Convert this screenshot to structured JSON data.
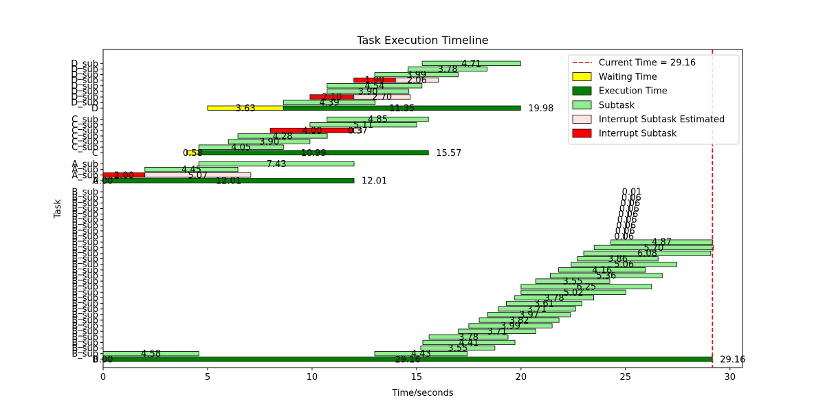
{
  "chart_data": {
    "type": "gantt",
    "title": "Task Execution Timeline",
    "xlabel": "Time/seconds",
    "ylabel": "Task",
    "xlim": [
      0,
      30.6
    ],
    "xticks": [
      0,
      5,
      10,
      15,
      20,
      25,
      30
    ],
    "grid": false,
    "legend_position": "top-right",
    "colors": {
      "current_time": "#ff0000",
      "waiting": "#ffff00",
      "execution": "#008000",
      "subtask": "#90ee90",
      "interrupt_estimated": "#ffe4e1",
      "interrupt": "#ff0000"
    },
    "legend": [
      {
        "label": "Current Time = 29.16",
        "kind": "line",
        "color": "#ff0000"
      },
      {
        "label": "Waiting Time",
        "kind": "rect",
        "color": "#ffff00"
      },
      {
        "label": "Execution Time",
        "kind": "rect",
        "color": "#008000"
      },
      {
        "label": "Subtask",
        "kind": "rect",
        "color": "#90ee90"
      },
      {
        "label": "Interrupt Subtask Estimated",
        "kind": "rect",
        "color": "#ffe4e1"
      },
      {
        "label": "Interrupt Subtask",
        "kind": "rect",
        "color": "#ff0000"
      }
    ],
    "current_time": 29.16,
    "rows": [
      {
        "row": 32.5,
        "label": "B",
        "bars": [
          {
            "start": 0.0,
            "dur": 29.16,
            "kind": "execution",
            "text": "29.16"
          },
          {
            "start": 0.0,
            "dur": 0,
            "kind": "waiting",
            "text": "0.00"
          }
        ],
        "end_label": "29.16"
      },
      {
        "row": 33.5,
        "label": "B_sub",
        "bars": [
          {
            "start": 0.0,
            "dur": 4.58,
            "kind": "subtask",
            "text": "4.58"
          },
          {
            "start": 13.0,
            "dur": 4.43,
            "kind": "subtask",
            "text": "4.43"
          }
        ]
      },
      {
        "row": 34.5,
        "label": "B_sub",
        "bars": [
          {
            "start": 15.2,
            "dur": 3.55,
            "kind": "subtask",
            "text": "3.55"
          }
        ]
      },
      {
        "row": 35.5,
        "label": "B_sub",
        "bars": [
          {
            "start": 15.3,
            "dur": 4.41,
            "kind": "subtask",
            "text": "4.41"
          }
        ]
      },
      {
        "row": 36.5,
        "label": "B_sub",
        "bars": [
          {
            "start": 15.6,
            "dur": 3.78,
            "kind": "subtask",
            "text": "3.78"
          }
        ]
      },
      {
        "row": 37.5,
        "label": "B_sub",
        "bars": [
          {
            "start": 17.0,
            "dur": 3.71,
            "kind": "subtask",
            "text": "3.71"
          }
        ]
      },
      {
        "row": 38.5,
        "label": "B_sub",
        "bars": [
          {
            "start": 17.5,
            "dur": 3.99,
            "kind": "subtask",
            "text": "3.99"
          }
        ]
      },
      {
        "row": 39.5,
        "label": "B_sub",
        "bars": [
          {
            "start": 18.0,
            "dur": 3.82,
            "kind": "subtask",
            "text": "3.82"
          }
        ]
      },
      {
        "row": 40.5,
        "label": "B_sub",
        "bars": [
          {
            "start": 18.4,
            "dur": 3.97,
            "kind": "subtask",
            "text": "3.97"
          }
        ]
      },
      {
        "row": 41.5,
        "label": "B_sub",
        "bars": [
          {
            "start": 18.9,
            "dur": 3.71,
            "kind": "subtask",
            "text": "3.71"
          }
        ]
      },
      {
        "row": 42.5,
        "label": "B_sub",
        "bars": [
          {
            "start": 19.3,
            "dur": 3.61,
            "kind": "subtask",
            "text": "3.61"
          }
        ]
      },
      {
        "row": 43.5,
        "label": "B_sub",
        "bars": [
          {
            "start": 19.7,
            "dur": 3.78,
            "kind": "subtask",
            "text": "3.78"
          }
        ]
      },
      {
        "row": 44.5,
        "label": "B_sub",
        "bars": [
          {
            "start": 20.0,
            "dur": 5.02,
            "kind": "subtask",
            "text": "5.02"
          }
        ]
      },
      {
        "row": 45.5,
        "label": "B_sub",
        "bars": [
          {
            "start": 20.0,
            "dur": 6.25,
            "kind": "subtask",
            "text": "6.25"
          }
        ]
      },
      {
        "row": 46.5,
        "label": "B_sub",
        "bars": [
          {
            "start": 20.7,
            "dur": 3.55,
            "kind": "subtask",
            "text": "3.55"
          }
        ]
      },
      {
        "row": 47.5,
        "label": "B_sub",
        "bars": [
          {
            "start": 21.4,
            "dur": 5.36,
            "kind": "subtask",
            "text": "5.36"
          }
        ]
      },
      {
        "row": 48.5,
        "label": "B_sub",
        "bars": [
          {
            "start": 21.8,
            "dur": 4.16,
            "kind": "subtask",
            "text": "4.16"
          }
        ]
      },
      {
        "row": 49.5,
        "label": "B_sub",
        "bars": [
          {
            "start": 22.4,
            "dur": 5.06,
            "kind": "subtask",
            "text": "5.06"
          }
        ]
      },
      {
        "row": 50.5,
        "label": "B_sub",
        "bars": [
          {
            "start": 22.7,
            "dur": 3.86,
            "kind": "subtask",
            "text": "3.86"
          }
        ]
      },
      {
        "row": 51.5,
        "label": "B_sub",
        "bars": [
          {
            "start": 23.0,
            "dur": 6.08,
            "kind": "subtask",
            "text": "6.08"
          }
        ]
      },
      {
        "row": 52.5,
        "label": "B_sub",
        "bars": [
          {
            "start": 23.5,
            "dur": 5.7,
            "kind": "subtask",
            "text": "5.70"
          }
        ]
      },
      {
        "row": 53.5,
        "label": "B_sub",
        "bars": [
          {
            "start": 24.3,
            "dur": 4.87,
            "kind": "subtask",
            "text": "4.87"
          }
        ]
      },
      {
        "row": 54.5,
        "label": "B_sub",
        "bars": [
          {
            "start": 24.9,
            "dur": 0.06,
            "kind": "subtask",
            "text": "0.06"
          }
        ]
      },
      {
        "row": 55.5,
        "label": "B_sub",
        "bars": [
          {
            "start": 24.95,
            "dur": 0.06,
            "kind": "subtask",
            "text": "0.06"
          }
        ]
      },
      {
        "row": 56.5,
        "label": "B_sub",
        "bars": [
          {
            "start": 25.0,
            "dur": 0.06,
            "kind": "subtask",
            "text": "0.06"
          }
        ]
      },
      {
        "row": 57.5,
        "label": "B_sub",
        "bars": [
          {
            "start": 25.05,
            "dur": 0.06,
            "kind": "subtask",
            "text": "0.06"
          }
        ]
      },
      {
        "row": 58.5,
        "label": "B_sub",
        "bars": [
          {
            "start": 25.1,
            "dur": 0.06,
            "kind": "subtask",
            "text": "0.06"
          }
        ]
      },
      {
        "row": 59.5,
        "label": "B_sub",
        "bars": [
          {
            "start": 25.15,
            "dur": 0.06,
            "kind": "subtask",
            "text": "0.06"
          }
        ]
      },
      {
        "row": 60.5,
        "label": "B_sub",
        "bars": [
          {
            "start": 25.2,
            "dur": 0.06,
            "kind": "subtask",
            "text": "0.06"
          }
        ]
      },
      {
        "row": 61.5,
        "label": "B_sub",
        "bars": [
          {
            "start": 25.25,
            "dur": 0.06,
            "kind": "subtask",
            "text": "0.06"
          }
        ]
      },
      {
        "row": 62.5,
        "label": "B_sub",
        "bars": [
          {
            "start": 25.3,
            "dur": 0.01,
            "kind": "subtask",
            "text": "0.01"
          }
        ]
      },
      {
        "row": 64.5,
        "label": "A",
        "bars": [
          {
            "start": 0.0,
            "dur": 12.01,
            "kind": "execution",
            "text": "12.01"
          },
          {
            "start": 0.0,
            "dur": 0,
            "kind": "waiting",
            "text": "0.00"
          }
        ],
        "end_label": "12.01"
      },
      {
        "row": 65.5,
        "label": "A_sub",
        "bars": [
          {
            "start": 0.0,
            "dur": 2.0,
            "kind": "interrupt",
            "text": "2.00"
          },
          {
            "start": 2.0,
            "dur": 5.07,
            "kind": "interrupt_estimated",
            "text": "5.07"
          }
        ]
      },
      {
        "row": 66.5,
        "label": "A_sub",
        "bars": [
          {
            "start": 2.0,
            "dur": 4.45,
            "kind": "subtask",
            "text": "4.45"
          }
        ]
      },
      {
        "row": 67.5,
        "label": "A_sub",
        "bars": [
          {
            "start": 4.58,
            "dur": 7.43,
            "kind": "subtask",
            "text": "7.43"
          }
        ]
      },
      {
        "row": 69.5,
        "label": "C",
        "bars": [
          {
            "start": 4.0,
            "dur": 0.58,
            "kind": "waiting",
            "text": "0.58"
          },
          {
            "start": 4.58,
            "dur": 10.99,
            "kind": "execution",
            "text": "10.99"
          }
        ],
        "end_label": "15.57"
      },
      {
        "row": 70.5,
        "label": "C_sub",
        "bars": [
          {
            "start": 4.58,
            "dur": 4.05,
            "kind": "subtask",
            "text": "4.05"
          }
        ]
      },
      {
        "row": 71.5,
        "label": "C_sub",
        "bars": [
          {
            "start": 6.0,
            "dur": 3.9,
            "kind": "subtask",
            "text": "3.90"
          }
        ]
      },
      {
        "row": 72.5,
        "label": "C_sub",
        "bars": [
          {
            "start": 6.45,
            "dur": 4.28,
            "kind": "subtask",
            "text": "4.28"
          }
        ]
      },
      {
        "row": 73.5,
        "label": "C_sub",
        "bars": [
          {
            "start": 8.0,
            "dur": 4.0,
            "kind": "interrupt",
            "text": "4.00"
          },
          {
            "start": 12.0,
            "dur": 0.37,
            "kind": "interrupt_estimated",
            "text": "0.37"
          }
        ]
      },
      {
        "row": 74.5,
        "label": "C_sub",
        "bars": [
          {
            "start": 9.9,
            "dur": 5.11,
            "kind": "subtask",
            "text": "5.11"
          }
        ]
      },
      {
        "row": 75.5,
        "label": "C_sub",
        "bars": [
          {
            "start": 10.72,
            "dur": 4.85,
            "kind": "subtask",
            "text": "4.85"
          }
        ]
      },
      {
        "row": 77.5,
        "label": "D",
        "bars": [
          {
            "start": 5.0,
            "dur": 3.63,
            "kind": "waiting",
            "text": "3.63"
          },
          {
            "start": 8.63,
            "dur": 11.35,
            "kind": "execution",
            "text": "11.35"
          }
        ],
        "end_label": "19.98"
      },
      {
        "row": 78.5,
        "label": "D_sub",
        "bars": [
          {
            "start": 8.63,
            "dur": 4.39,
            "kind": "subtask",
            "text": "4.39"
          }
        ]
      },
      {
        "row": 79.5,
        "label": "D_sub",
        "bars": [
          {
            "start": 9.9,
            "dur": 2.1,
            "kind": "interrupt",
            "text": "2.10"
          },
          {
            "start": 12.0,
            "dur": 2.7,
            "kind": "interrupt_estimated",
            "text": "2.70"
          }
        ]
      },
      {
        "row": 80.5,
        "label": "D_sub",
        "bars": [
          {
            "start": 10.72,
            "dur": 3.9,
            "kind": "subtask",
            "text": "3.90"
          }
        ]
      },
      {
        "row": 81.5,
        "label": "D_sub",
        "bars": [
          {
            "start": 10.72,
            "dur": 4.54,
            "kind": "subtask",
            "text": "4.54"
          }
        ]
      },
      {
        "row": 82.5,
        "label": "D_sub",
        "bars": [
          {
            "start": 12.0,
            "dur": 1.99,
            "kind": "interrupt",
            "text": "1.99"
          },
          {
            "start": 13.99,
            "dur": 2.06,
            "kind": "interrupt_estimated",
            "text": "2.06"
          }
        ]
      },
      {
        "row": 83.5,
        "label": "D_sub",
        "bars": [
          {
            "start": 13.0,
            "dur": 3.99,
            "kind": "subtask",
            "text": "3.99"
          }
        ]
      },
      {
        "row": 84.5,
        "label": "D_sub",
        "bars": [
          {
            "start": 14.6,
            "dur": 3.78,
            "kind": "subtask",
            "text": "3.78"
          }
        ]
      },
      {
        "row": 85.5,
        "label": "D_sub",
        "bars": [
          {
            "start": 15.27,
            "dur": 4.71,
            "kind": "subtask",
            "text": "4.71"
          }
        ]
      }
    ]
  }
}
